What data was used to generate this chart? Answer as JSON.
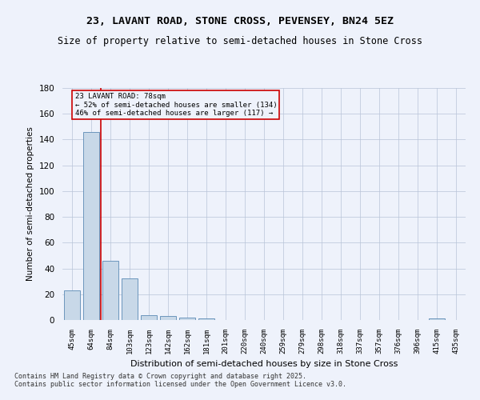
{
  "title": "23, LAVANT ROAD, STONE CROSS, PEVENSEY, BN24 5EZ",
  "subtitle": "Size of property relative to semi-detached houses in Stone Cross",
  "xlabel": "Distribution of semi-detached houses by size in Stone Cross",
  "ylabel": "Number of semi-detached properties",
  "categories": [
    "45sqm",
    "64sqm",
    "84sqm",
    "103sqm",
    "123sqm",
    "142sqm",
    "162sqm",
    "181sqm",
    "201sqm",
    "220sqm",
    "240sqm",
    "259sqm",
    "279sqm",
    "298sqm",
    "318sqm",
    "337sqm",
    "357sqm",
    "376sqm",
    "396sqm",
    "415sqm",
    "435sqm"
  ],
  "values": [
    23,
    146,
    46,
    32,
    4,
    3,
    2,
    1,
    0,
    0,
    0,
    0,
    0,
    0,
    0,
    0,
    0,
    0,
    0,
    1,
    0
  ],
  "bar_color": "#c8d8e8",
  "bar_edge_color": "#5b8ab5",
  "marker_line_color": "#cc0000",
  "annotation_line1": "23 LAVANT ROAD: 78sqm",
  "annotation_line2": "← 52% of semi-detached houses are smaller (134)",
  "annotation_line3": "46% of semi-detached houses are larger (117) →",
  "annotation_box_color": "#cc0000",
  "ylim": [
    0,
    180
  ],
  "yticks": [
    0,
    20,
    40,
    60,
    80,
    100,
    120,
    140,
    160,
    180
  ],
  "background_color": "#eef2fb",
  "grid_color": "#b8c4d8",
  "footer_line1": "Contains HM Land Registry data © Crown copyright and database right 2025.",
  "footer_line2": "Contains public sector information licensed under the Open Government Licence v3.0."
}
